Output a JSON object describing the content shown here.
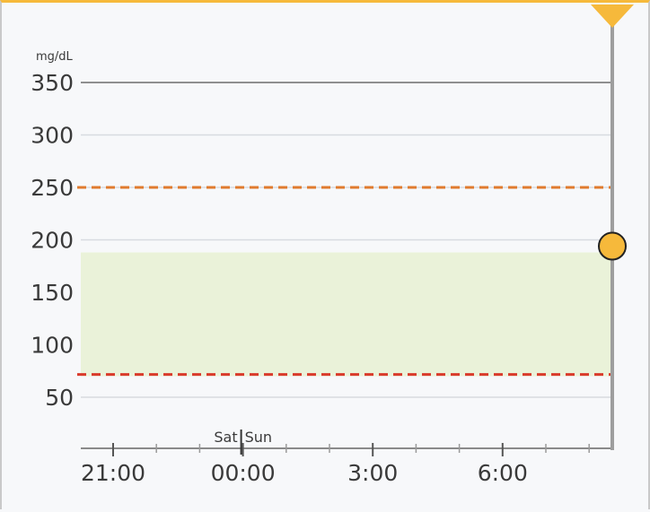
{
  "unit_label": "mg/dL",
  "y_ticks": [
    {
      "value": 350,
      "label": "350"
    },
    {
      "value": 300,
      "label": "300"
    },
    {
      "value": 250,
      "label": "250"
    },
    {
      "value": 200,
      "label": "200"
    },
    {
      "value": 150,
      "label": "150"
    },
    {
      "value": 100,
      "label": "100"
    },
    {
      "value": 50,
      "label": "50"
    }
  ],
  "x_ticks": [
    {
      "label": "21:00"
    },
    {
      "label": "00:00"
    },
    {
      "label": "3:00"
    },
    {
      "label": "6:00"
    }
  ],
  "day_labels": {
    "before": "Sat",
    "after": "Sun"
  },
  "thresholds": {
    "high": {
      "value": 250,
      "color": "#e07b2e"
    },
    "low": {
      "value": 70,
      "color": "#d93a2b"
    }
  },
  "target_range": {
    "low": 70,
    "high": 188,
    "color": "#eaf2d9"
  },
  "current_reading": {
    "value": 194,
    "color": "#f6b93b"
  },
  "colors": {
    "accent": "#f6b93b",
    "cursor_line": "#9e9e9e",
    "grid": "#d8dbe0"
  },
  "chart_data": {
    "type": "line",
    "ylabel": "mg/dL",
    "ylim": [
      0,
      350
    ],
    "x_tick_labels": [
      "21:00",
      "00:00",
      "3:00",
      "6:00"
    ],
    "series": [],
    "annotations": [
      "Sat",
      "Sun"
    ],
    "reference_lines": [
      250,
      70
    ],
    "target_band": [
      70,
      188
    ],
    "current_point": {
      "y": 194
    }
  }
}
